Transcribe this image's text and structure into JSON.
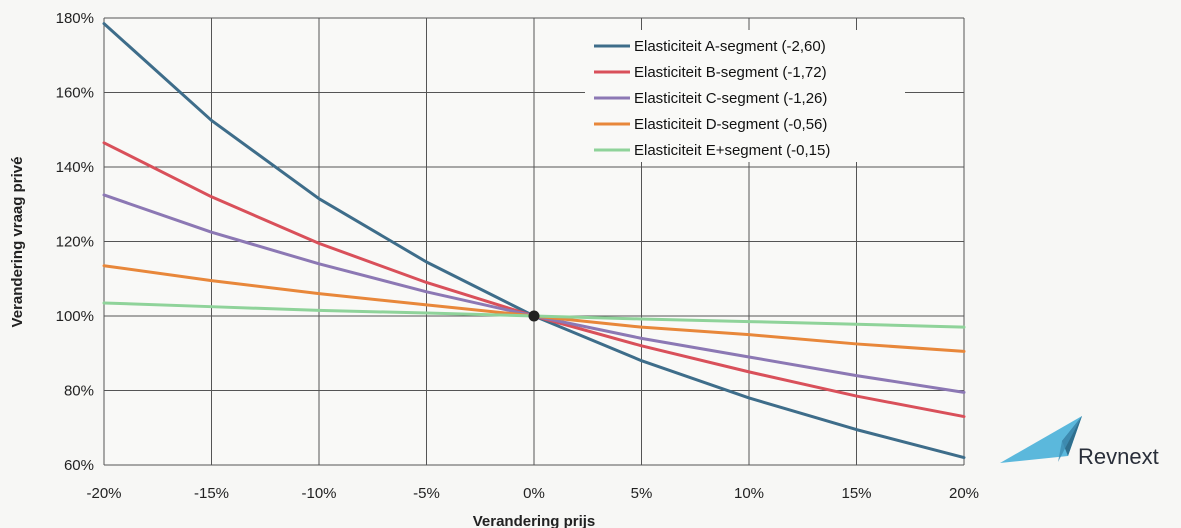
{
  "chart_data": {
    "type": "line",
    "xlabel": "Verandering prijs",
    "ylabel": "Verandering vraag privé",
    "xlim": [
      -20,
      20
    ],
    "ylim": [
      60,
      180
    ],
    "x_ticks": [
      "-20%",
      "-15%",
      "-10%",
      "-5%",
      "0%",
      "5%",
      "10%",
      "15%",
      "20%"
    ],
    "y_ticks": [
      "60%",
      "80%",
      "100%",
      "120%",
      "140%",
      "160%",
      "180%"
    ],
    "x": [
      -20,
      -15,
      -10,
      -5,
      0,
      5,
      10,
      15,
      20
    ],
    "grid": true,
    "legend_position": "top-right",
    "series": [
      {
        "name": "Elasticiteit A-segment (-2,60)",
        "color": "#3e6d8a",
        "values": [
          178.5,
          152.5,
          131.5,
          114.5,
          100,
          88,
          78,
          69.5,
          62
        ]
      },
      {
        "name": "Elasticiteit B-segment (-1,72)",
        "color": "#d9505a",
        "values": [
          146.5,
          132,
          119.5,
          109,
          100,
          92,
          85,
          78.5,
          73
        ]
      },
      {
        "name": "Elasticiteit C-segment (-1,26)",
        "color": "#8c78b4",
        "values": [
          132.5,
          122.5,
          114,
          106.5,
          100,
          94,
          89,
          84,
          79.5
        ]
      },
      {
        "name": "Elasticiteit D-segment (-0,56)",
        "color": "#e8873a",
        "values": [
          113.5,
          109.5,
          106,
          103,
          100,
          97,
          95,
          92.5,
          90.5
        ]
      },
      {
        "name": "Elasticiteit E+segment (-0,15)",
        "color": "#8fd39a",
        "values": [
          103.5,
          102.5,
          101.5,
          100.8,
          100,
          99.2,
          98.5,
          97.8,
          97
        ]
      }
    ],
    "annotations": [
      {
        "type": "point",
        "x": 0,
        "y": 100
      }
    ]
  },
  "brand": {
    "name": "Revnext",
    "icon": "paper-plane-icon"
  }
}
